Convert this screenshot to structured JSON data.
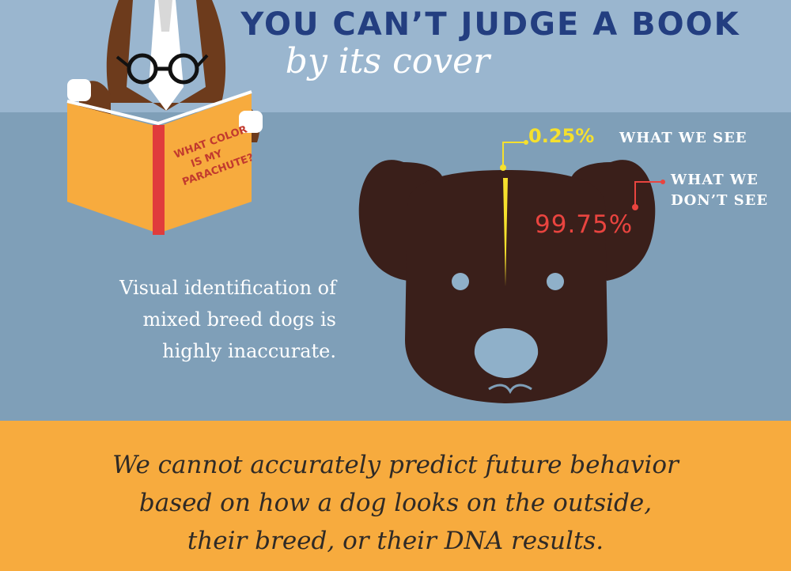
{
  "header": {
    "title": "YOU CAN’T JUDGE A BOOK",
    "subtitle": "by its cover"
  },
  "book": {
    "cover_lines": [
      "WHAT COLOR",
      "IS MY",
      "PARACHUTE?"
    ]
  },
  "stats": {
    "seen_value": "0.25%",
    "seen_label": "WHAT WE SEE",
    "unseen_value": "99.75%",
    "unseen_label_line1": "WHAT WE",
    "unseen_label_line2": "DON’T SEE"
  },
  "caption": {
    "line1": "Visual identification of",
    "line2": "mixed breed dogs is",
    "line3": "highly inaccurate."
  },
  "footer": {
    "line1": "We cannot accurately predict future behavior",
    "line2": "based on how a dog looks on the outside,",
    "line3": "their breed, or their DNA results."
  },
  "colors": {
    "top_band": "#9ab6cf",
    "mid_band": "#7f9fb8",
    "bottom_band": "#f7ab3e",
    "title": "#233e80",
    "dog": "#3a1f1a",
    "seen": "#f5e02d",
    "unseen": "#e9443f"
  }
}
